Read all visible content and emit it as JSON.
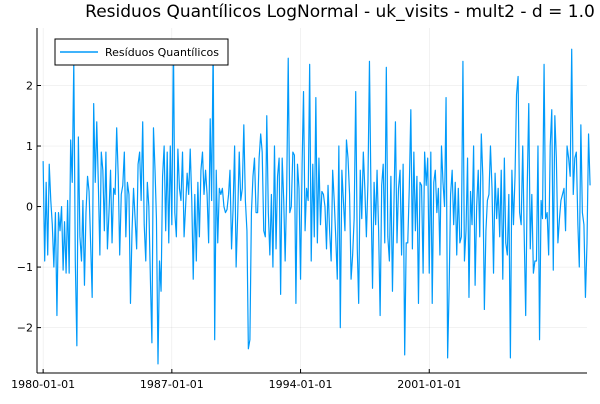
{
  "chart_data": {
    "type": "line",
    "title": "Residuos Quantílicos LogNormal - uk_visits - mult2 - d = 1.0",
    "xlabel": "",
    "ylabel": "",
    "xlim": [
      "1979-09-01",
      "2009-08-01"
    ],
    "ylim": [
      -2.75,
      2.95
    ],
    "xticks": [
      "1980-01-01",
      "1987-01-01",
      "1994-01-01",
      "2001-01-01"
    ],
    "yticks": [
      -2,
      -1,
      0,
      1,
      2
    ],
    "ytick_labels": [
      "−2",
      "−1",
      "0",
      "1",
      "2"
    ],
    "grid": true,
    "legend_position": "top-left",
    "x_start": "1980-01-01",
    "x_frequency": "monthly",
    "series": [
      {
        "name": "Resíduos Quantílicos",
        "color": "#009AFA",
        "values": [
          0.75,
          -0.9,
          0.4,
          -0.8,
          0.7,
          0.1,
          -0.3,
          -1.0,
          -0.1,
          -1.8,
          -0.1,
          -0.4,
          0.0,
          -1.05,
          -0.25,
          -1.1,
          0.1,
          -1.1,
          1.1,
          0.4,
          2.4,
          -0.9,
          -2.3,
          1.15,
          -0.5,
          -0.9,
          0.1,
          -1.3,
          -0.1,
          0.5,
          0.25,
          -0.6,
          -1.5,
          1.7,
          0.4,
          1.4,
          0.4,
          -0.8,
          0.9,
          0.6,
          -0.4,
          0.9,
          -0.7,
          -0.1,
          0.6,
          -0.6,
          0.3,
          0.2,
          1.3,
          0.5,
          -0.8,
          0.2,
          0.35,
          0.9,
          -0.5,
          0.4,
          0.2,
          -1.6,
          -0.4,
          0.3,
          -0.2,
          -0.7,
          0.7,
          0.9,
          0.1,
          1.4,
          -0.3,
          -0.9,
          0.4,
          0.0,
          -1.2,
          -2.25,
          1.3,
          0.6,
          -0.2,
          -2.6,
          -0.9,
          -1.4,
          0.5,
          1.0,
          -0.4,
          0.9,
          -0.6,
          1.0,
          -0.3,
          2.75,
          -0.1,
          -0.5,
          0.95,
          0.3,
          0.1,
          0.9,
          -0.5,
          0.0,
          0.55,
          0.2,
          0.95,
          0.1,
          -1.2,
          0.2,
          -0.9,
          0.4,
          -0.5,
          0.6,
          0.9,
          0.2,
          0.6,
          0.2,
          -0.6,
          1.45,
          0.1,
          2.7,
          -2.2,
          0.6,
          -0.6,
          0.3,
          0.2,
          0.3,
          0.0,
          -0.1,
          -0.05,
          0.2,
          0.6,
          -0.7,
          -0.05,
          1.0,
          -1.0,
          -0.15,
          0.9,
          0.1,
          0.3,
          1.35,
          0.1,
          -0.4,
          -2.35,
          -2.2,
          -0.1,
          0.5,
          0.8,
          -0.1,
          -0.1,
          0.8,
          1.2,
          0.9,
          -0.4,
          -0.5,
          1.5,
          -0.1,
          -0.8,
          0.2,
          -1.0,
          1.0,
          -0.7,
          0.5,
          0.8,
          -1.45,
          0.8,
          0.1,
          -0.9,
          0.3,
          2.45,
          -0.1,
          0.0,
          0.9,
          0.85,
          -1.6,
          0.7,
          0.3,
          -1.2,
          0.7,
          1.9,
          -0.4,
          0.3,
          0.1,
          2.35,
          -0.9,
          0.7,
          -0.5,
          1.8,
          -0.6,
          0.8,
          -0.3,
          0.25,
          0.2,
          0.0,
          -0.7,
          0.35,
          -0.4,
          -0.9,
          0.6,
          0.1,
          -0.5,
          -1.2,
          1.0,
          -2.0,
          0.6,
          0.1,
          -0.4,
          1.1,
          0.8,
          0.2,
          -1.2,
          -0.8,
          -0.2,
          1.9,
          -0.7,
          -1.6,
          0.6,
          -0.2,
          0.9,
          0.3,
          -0.5,
          0.4,
          2.4,
          0.15,
          -1.35,
          0.4,
          -0.3,
          0.6,
          -0.4,
          -1.8,
          0.35,
          0.7,
          -0.6,
          2.3,
          -0.5,
          -0.9,
          0.5,
          -1.4,
          0.1,
          1.4,
          -0.6,
          0.3,
          0.6,
          -0.8,
          0.7,
          -2.45,
          -0.6,
          -0.6,
          0.3,
          1.6,
          -0.7,
          0.9,
          -0.4,
          0.5,
          -1.6,
          0.4,
          0.35,
          -1.1,
          0.9,
          0.35,
          0.8,
          -1.1,
          0.9,
          -1.6,
          0.4,
          0.6,
          -0.1,
          0.3,
          -0.8,
          1.0,
          0.4,
          0.0,
          1.8,
          -2.5,
          -1.3,
          0.2,
          0.6,
          -0.3,
          0.4,
          -0.8,
          0.3,
          -0.6,
          -0.5,
          2.4,
          -0.9,
          -0.4,
          0.8,
          -1.5,
          0.25,
          -0.3,
          1.0,
          -1.3,
          0.0,
          0.6,
          -0.5,
          1.2,
          0.5,
          -1.7,
          -0.4,
          0.1,
          0.2,
          1.0,
          0.3,
          -1.1,
          0.55,
          -0.2,
          0.3,
          -0.5,
          0.6,
          -1.2,
          0.8,
          -0.6,
          -0.8,
          0.2,
          -2.5,
          0.6,
          -0.3,
          0.5,
          1.85,
          2.15,
          -0.1,
          -0.3,
          1.0,
          -0.4,
          -1.8,
          0.3,
          1.7,
          -0.7,
          0.2,
          -1.1,
          -0.9,
          -0.9,
          1.0,
          -2.2,
          0.1,
          -0.2,
          2.35,
          -0.2,
          -0.1,
          -0.8,
          1.0,
          1.6,
          -1.05,
          1.5,
          0.8,
          -0.6,
          -0.2,
          0.1,
          0.2,
          0.3,
          -0.4,
          1.0,
          0.8,
          0.5,
          2.6,
          0.2,
          0.8,
          0.9,
          -0.3,
          -1.0,
          1.35,
          -0.1,
          -0.3,
          -1.5,
          -0.6,
          1.2,
          0.35
        ]
      }
    ]
  }
}
